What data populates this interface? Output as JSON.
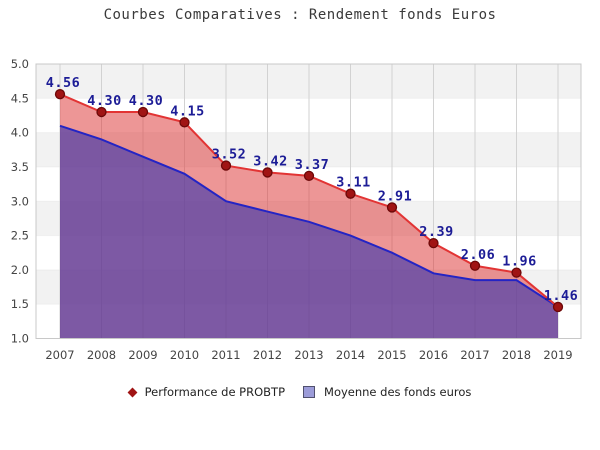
{
  "title": "Courbes Comparatives : Rendement fonds Euros",
  "chart_data": {
    "type": "line",
    "x": [
      2007,
      2008,
      2009,
      2010,
      2011,
      2012,
      2013,
      2014,
      2015,
      2016,
      2017,
      2018,
      2019
    ],
    "series": [
      {
        "name": "Performance de PROBTP",
        "values": [
          4.56,
          4.3,
          4.3,
          4.15,
          3.52,
          3.42,
          3.37,
          3.11,
          2.91,
          2.39,
          2.06,
          1.96,
          1.46
        ],
        "line_color": "#e23434",
        "marker": "circle",
        "marker_fill": "#a01414",
        "marker_stroke": "#6d0808",
        "point_labels": true,
        "label_color": "#1c1c96",
        "fill_to_next_series": "rgba(222,64,64,0.55)"
      },
      {
        "name": "Moyenne des fonds euros",
        "values": [
          4.1,
          3.9,
          3.65,
          3.4,
          3.0,
          2.85,
          2.7,
          2.5,
          2.25,
          1.95,
          1.85,
          1.85,
          1.46
        ],
        "line_color": "#2424c4",
        "marker": "none",
        "point_labels": false,
        "fill_to_baseline": "rgba(102,60,148,0.85)"
      }
    ],
    "title": "Courbes Comparatives : Rendement fonds Euros",
    "xlabel": "",
    "ylabel": "",
    "ylim": [
      1.0,
      5.0
    ],
    "ytick_step": 0.5,
    "grid": "on",
    "band_colors": [
      "#f2f2f2",
      "#ffffff"
    ],
    "gridline_color": "#d2d2d2",
    "border_color": "#c8c8c8",
    "legend_position": "bottom"
  },
  "axis": {
    "x_labels": [
      "2007",
      "2008",
      "2009",
      "2010",
      "2011",
      "2012",
      "2013",
      "2014",
      "2015",
      "2016",
      "2017",
      "2018",
      "2019"
    ],
    "y_labels": [
      "5.0",
      "4.5",
      "4.0",
      "3.5",
      "3.0",
      "2.5",
      "2.0",
      "1.5",
      "1.0"
    ],
    "tick_color": "#444444"
  },
  "legend": {
    "items": [
      {
        "label": "Performance de PROBTP",
        "marker": "diamond-icon",
        "color": "#a01414"
      },
      {
        "label": "Moyenne des fonds euros",
        "marker": "square-icon",
        "color": "#9c9cd9"
      }
    ]
  }
}
